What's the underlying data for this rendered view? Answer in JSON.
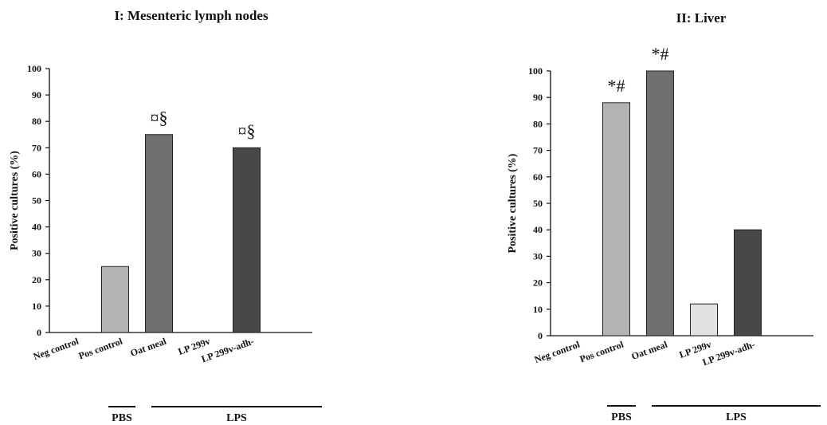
{
  "chart_data": [
    {
      "type": "bar",
      "title": "I: Mesenteric lymph nodes",
      "ylabel": "Positive cultures (%)",
      "xlabel": "",
      "ylim": [
        0,
        100
      ],
      "yticks": [
        0,
        10,
        20,
        30,
        40,
        50,
        60,
        70,
        80,
        90,
        100
      ],
      "categories": [
        "Neg control",
        "Pos control",
        "Oat meal",
        "LP 299v",
        "LP 299v-adh-"
      ],
      "values": [
        0,
        25,
        75,
        0,
        70
      ],
      "colors": [
        "#e0e0e0",
        "#b3b3b3",
        "#6f6f6f",
        "#e0e0e0",
        "#484848"
      ],
      "annotations": [
        "",
        "",
        "¤§",
        "",
        "¤§"
      ],
      "groups": [
        {
          "label": "PBS",
          "from": 0,
          "to": 0
        },
        {
          "label": "LPS",
          "from": 1,
          "to": 4
        }
      ]
    },
    {
      "type": "bar",
      "title": "II: Liver",
      "ylabel": "Positive cultures (%)",
      "xlabel": "",
      "ylim": [
        0,
        100
      ],
      "yticks": [
        0,
        10,
        20,
        30,
        40,
        50,
        60,
        70,
        80,
        90,
        100
      ],
      "categories": [
        "Neg control",
        "Pos control",
        "Oat meal",
        "LP 299v",
        "LP 299v-adh-"
      ],
      "values": [
        0,
        88,
        100,
        12,
        40
      ],
      "colors": [
        "#e0e0e0",
        "#b3b3b3",
        "#6f6f6f",
        "#e2e2e2",
        "#484848"
      ],
      "annotations": [
        "",
        "*#",
        "*#",
        "",
        ""
      ],
      "groups": [
        {
          "label": "PBS",
          "from": 0,
          "to": 0
        },
        {
          "label": "LPS",
          "from": 1,
          "to": 4
        }
      ]
    }
  ]
}
